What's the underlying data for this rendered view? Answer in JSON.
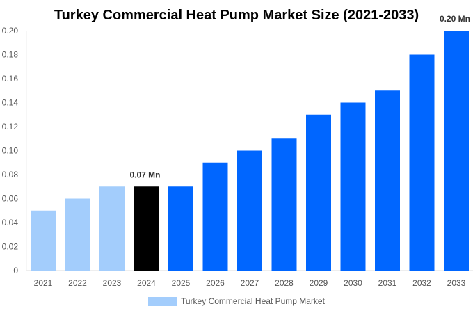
{
  "chart_data": {
    "type": "bar",
    "title": "Turkey Commercial Heat Pump Market Size (2021-2033)",
    "categories": [
      "2021",
      "2022",
      "2023",
      "2024",
      "2025",
      "2026",
      "2027",
      "2028",
      "2029",
      "2030",
      "2031",
      "2032",
      "2033"
    ],
    "series": [
      {
        "name": "Turkey Commercial Heat Pump Market",
        "values": [
          0.05,
          0.06,
          0.07,
          0.07,
          0.07,
          0.09,
          0.1,
          0.11,
          0.13,
          0.14,
          0.15,
          0.18,
          0.2
        ]
      }
    ],
    "bar_colors": [
      "#a3cdfc",
      "#a3cdfc",
      "#a3cdfc",
      "#000000",
      "#0066ff",
      "#0066ff",
      "#0066ff",
      "#0066ff",
      "#0066ff",
      "#0066ff",
      "#0066ff",
      "#0066ff",
      "#0066ff"
    ],
    "data_labels": [
      {
        "category": "2024",
        "text": "0.07 Mn"
      },
      {
        "category": "2033",
        "text": "0.20 Mn"
      }
    ],
    "yticks": [
      "0",
      "0.02",
      "0.04",
      "0.06",
      "0.08",
      "0.10",
      "0.12",
      "0.14",
      "0.16",
      "0.18",
      "0.20"
    ],
    "ylim": [
      0,
      0.2
    ],
    "xlabel": "",
    "ylabel": "",
    "grid": false,
    "legend": {
      "position": "bottom",
      "label": "Turkey Commercial Heat Pump Market",
      "color": "#a3cdfc"
    }
  }
}
